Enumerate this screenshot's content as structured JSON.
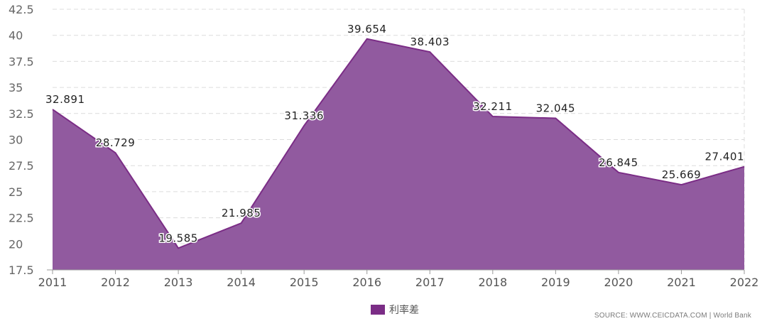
{
  "chart_data": {
    "type": "area",
    "title": "",
    "xlabel": "",
    "ylabel": "",
    "categories": [
      "2011",
      "2012",
      "2013",
      "2014",
      "2015",
      "2016",
      "2017",
      "2018",
      "2019",
      "2020",
      "2021",
      "2022"
    ],
    "series": [
      {
        "name": "利率差",
        "values": [
          32.891,
          28.729,
          19.585,
          21.985,
          31.336,
          39.654,
          38.403,
          32.211,
          32.045,
          26.845,
          25.669,
          27.401
        ],
        "labels": [
          "32.891",
          "28.729",
          "19.585",
          "21.985",
          "31.336",
          "39.654",
          "38.403",
          "32.211",
          "32.045",
          "26.845",
          "25.669",
          "27.401"
        ]
      }
    ],
    "ylim": [
      17.5,
      42.5
    ],
    "yticks": [
      "17.5",
      "20",
      "22.5",
      "25",
      "27.5",
      "30",
      "32.5",
      "35",
      "37.5",
      "40",
      "42.5"
    ],
    "grid": true,
    "legend_position": "bottom-center",
    "colors": {
      "fill": "#915a9f",
      "line": "#7b2d86",
      "swatch": "#7b2d86"
    }
  },
  "legend": {
    "label": "利率差"
  },
  "source": "SOURCE: WWW.CEICDATA.COM | World Bank"
}
